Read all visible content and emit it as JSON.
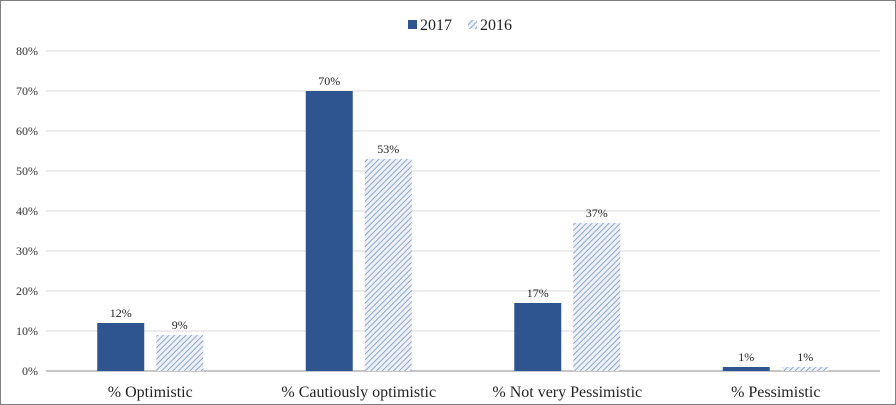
{
  "chart_data": {
    "type": "bar",
    "categories": [
      "% Optimistic",
      "% Cautiously optimistic",
      "% Not very Pessimistic",
      "% Pessimistic"
    ],
    "series": [
      {
        "name": "2017",
        "values": [
          12,
          70,
          17,
          1
        ],
        "labels": [
          "12%",
          "70%",
          "17%",
          "1%"
        ]
      },
      {
        "name": "2016",
        "values": [
          9,
          53,
          37,
          1
        ],
        "labels": [
          "9%",
          "53%",
          "37%",
          "1%"
        ]
      }
    ],
    "ylim": [
      0,
      80
    ],
    "yticks": [
      0,
      10,
      20,
      30,
      40,
      50,
      60,
      70,
      80
    ],
    "ytick_labels": [
      "0%",
      "10%",
      "20%",
      "30%",
      "40%",
      "50%",
      "60%",
      "70%",
      "80%"
    ],
    "grid": true,
    "legend_position": "top-center",
    "colors": {
      "2017": "#2e5590",
      "2016": "#a9bcd9",
      "grid": "#d9d9d9"
    }
  }
}
